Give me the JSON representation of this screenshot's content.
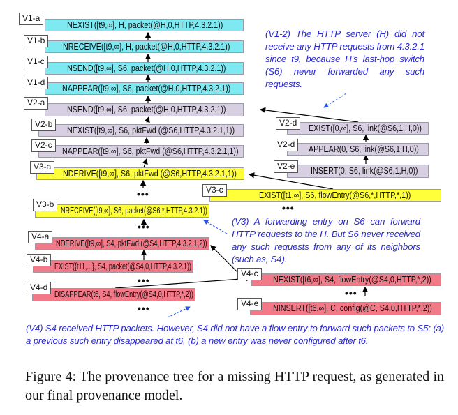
{
  "nodes": {
    "v1a": {
      "label": "V1-a",
      "text": "NEXIST([t9,∞], H, packet(@H,0,HTTP,4.3.2.1))"
    },
    "v1b": {
      "label": "V1-b",
      "text": "NRECEIVE([t9,∞], H, packet(@H,0,HTTP,4.3.2.1))"
    },
    "v1c": {
      "label": "V1-c",
      "text": "NSEND([t9,∞], S6, packet(@H,0,HTTP,4.3.2.1))"
    },
    "v1d": {
      "label": "V1-d",
      "text": "NAPPEAR([t9,∞], S6, packet(@H,0,HTTP,4.3.2.1))"
    },
    "v2a": {
      "label": "V2-a",
      "text": "NSEND([t9,∞], S6, packet(@H,0,HTTP,4.3.2.1))"
    },
    "v2b": {
      "label": "V2-b",
      "text": "NEXIST([t9,∞], S6, pktFwd (@S6,HTTP,4.3.2.1,1))"
    },
    "v2c": {
      "label": "V2-c",
      "text": "NAPPEAR([t9,∞], S6, pktFwd (@S6,HTTP,4.3.2.1,1))"
    },
    "v2d1": {
      "label": "V2-d",
      "text": "EXIST([0,∞], S6, link(@S6,1,H,0))"
    },
    "v2d2": {
      "label": "V2-d",
      "text": "APPEAR(0, S6, link(@S6,1,H,0))"
    },
    "v2e": {
      "label": "V2-e",
      "text": "INSERT(0, S6, link(@S6,1,H,0))"
    },
    "v3a": {
      "label": "V3-a",
      "text": "NDERIVE([t9,∞], S6, pktFwd (@S6,HTTP,4.3.2.1,1))"
    },
    "v3b": {
      "label": "V3-b",
      "text": "NRECEIVE([t9,∞], S6, packet(@S6,*,HTTP,4.3.2.1))"
    },
    "v3c": {
      "label": "V3-c",
      "text": "EXIST([t1,∞], S6, flowEntry(@S6,*,HTTP,*,1))"
    },
    "v4a": {
      "label": "V4-a",
      "text": "NDERIVE([t9,∞], S4, pktFwd (@S4,HTTP,4.3.2.1,2))"
    },
    "v4b": {
      "label": "V4-b",
      "text": "EXIST({t11,...}, S4, packet(@S4,0,HTTP,4.3.2.1))"
    },
    "v4c": {
      "label": "V4-c",
      "text": "NEXIST([t6,∞], S4, flowEntry(@S4,0,HTTP,*,2))"
    },
    "v4d": {
      "label": "V4-d",
      "text": "DISAPPEAR(t6, S4, flowEntry(@S4,0,HTTP,*,2))"
    },
    "v4e": {
      "label": "V4-e",
      "text": "NINSERT([t6,∞], C, config(@C, S4,0,HTTP,*,2))"
    }
  },
  "ellipsis": "•••",
  "notes": {
    "v12": "(V1-2) The HTTP server (H) did not receive any HTTP requests from 4.3.2.1 since t9, because H's last-hop switch (S6) never forwarded any such requests.",
    "v3": "(V3) A forwarding entry on S6 can forward HTTP requests to the H. But S6 never received any such requests from any of its neighbors (such as, S4).",
    "v4": "(V4) S4 received HTTP packets. However, S4 did not have a flow entry to forward such packets to S5: (a) a previous such entry disappeared at t6, (b) a new entry was never configured after t6."
  },
  "caption": "Figure 4: The provenance tree for a missing HTTP request, as generated in our final provenance model.",
  "colors": {
    "cyan": "#7fe9f2",
    "purple": "#d8d0e2",
    "yellow": "#ffff3a",
    "red": "#f27a88",
    "note": "#2b2bd0"
  }
}
